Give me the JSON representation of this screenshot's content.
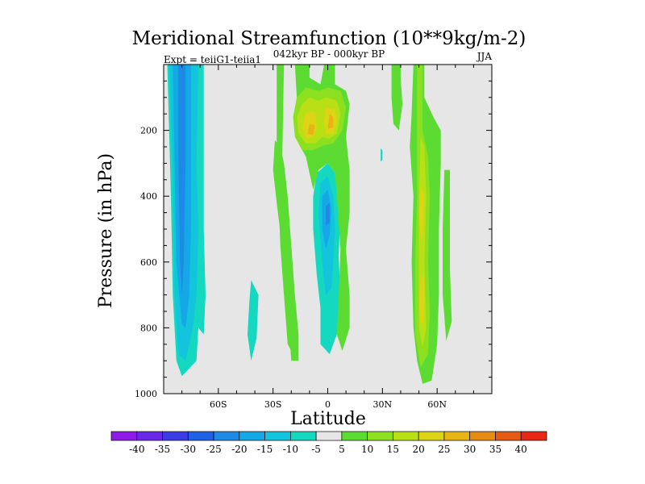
{
  "chart_data": {
    "type": "contour",
    "title": "Meridional Streamfunction (10**9kg/m-2)",
    "left_string": "Expt = teiiG1-teiia1",
    "center_string": "042kyr BP - 000kyr BP",
    "right_string": "JJA",
    "xlabel": "Latitude",
    "ylabel": "Pressure (in hPa)",
    "xlim": [
      -90,
      90
    ],
    "ylim": [
      1000,
      0
    ],
    "y_log": false,
    "x_ticks": [
      "60S",
      "30S",
      "0",
      "30N",
      "60N"
    ],
    "x_tick_values": [
      -60,
      -30,
      0,
      30,
      60
    ],
    "y_ticks": [
      "200",
      "400",
      "600",
      "800",
      "1000"
    ],
    "y_tick_values": [
      200,
      400,
      600,
      800,
      1000
    ],
    "background_color": "#e6e6e6",
    "colorbar": {
      "labels": [
        "-40",
        "-35",
        "-30",
        "-25",
        "-20",
        "-15",
        "-10",
        "-5",
        "5",
        "10",
        "15",
        "20",
        "25",
        "30",
        "35",
        "40"
      ],
      "colors": [
        "#8c1ce6",
        "#6a28e8",
        "#3c3ce6",
        "#2060e6",
        "#1e8ae6",
        "#14a8e6",
        "#12c4dc",
        "#14d8c0",
        "#e6e6e6",
        "#5cdc32",
        "#8ce020",
        "#b8e014",
        "#dcd414",
        "#e6b414",
        "#e68c14",
        "#e65a14",
        "#e62814"
      ]
    },
    "regions": [
      {
        "name": "-5",
        "level": -5,
        "points": [
          [
            -88,
            0
          ],
          [
            -68,
            0
          ],
          [
            -68,
            500
          ],
          [
            -67,
            700
          ],
          [
            -68,
            820
          ],
          [
            -71,
            800
          ],
          [
            -72,
            900
          ],
          [
            -80,
            947
          ],
          [
            -83,
            900
          ],
          [
            -85,
            700
          ],
          [
            -86,
            400
          ]
        ]
      },
      {
        "name": "-10",
        "level": -10,
        "points": [
          [
            -87,
            0
          ],
          [
            -71,
            0
          ],
          [
            -72,
            300
          ],
          [
            -71,
            500
          ],
          [
            -72,
            700
          ],
          [
            -74,
            800
          ],
          [
            -78,
            900
          ],
          [
            -82,
            880
          ],
          [
            -84,
            700
          ],
          [
            -85,
            300
          ]
        ]
      },
      {
        "name": "-15",
        "level": -15,
        "points": [
          [
            -85,
            0
          ],
          [
            -75,
            0
          ],
          [
            -75,
            300
          ],
          [
            -75,
            500
          ],
          [
            -76,
            700
          ],
          [
            -78,
            800
          ],
          [
            -80,
            790
          ],
          [
            -83,
            600
          ],
          [
            -84,
            300
          ]
        ]
      },
      {
        "name": "-20",
        "level": -20,
        "points": [
          [
            -82,
            0
          ],
          [
            -78,
            0
          ],
          [
            -78,
            300
          ],
          [
            -79,
            600
          ],
          [
            -80,
            700
          ],
          [
            -81,
            600
          ],
          [
            -82,
            300
          ]
        ]
      },
      {
        "name": "-5",
        "level": -5,
        "points": [
          [
            -42,
            655
          ],
          [
            -38,
            700
          ],
          [
            -39,
            830
          ],
          [
            -42,
            900
          ],
          [
            -44,
            820
          ],
          [
            -43,
            720
          ]
        ]
      },
      {
        "name": "-5",
        "level": -5,
        "points": [
          [
            -6,
            330
          ],
          [
            0,
            300
          ],
          [
            4,
            330
          ],
          [
            7,
            450
          ],
          [
            6,
            580
          ],
          [
            7,
            720
          ],
          [
            5,
            820
          ],
          [
            1,
            880
          ],
          [
            -4,
            850
          ],
          [
            -4,
            740
          ],
          [
            -6,
            640
          ],
          [
            -8,
            500
          ],
          [
            -8,
            400
          ]
        ]
      },
      {
        "name": "-10",
        "level": -10,
        "points": [
          [
            -4,
            360
          ],
          [
            0,
            340
          ],
          [
            3,
            400
          ],
          [
            4,
            500
          ],
          [
            3,
            600
          ],
          [
            2,
            680
          ],
          [
            -1,
            700
          ],
          [
            -3,
            600
          ],
          [
            -5,
            460
          ]
        ]
      },
      {
        "name": "-15",
        "level": -15,
        "points": [
          [
            -3,
            400
          ],
          [
            0,
            380
          ],
          [
            2,
            440
          ],
          [
            1,
            520
          ],
          [
            -1,
            560
          ],
          [
            -3,
            500
          ]
        ]
      },
      {
        "name": "-20",
        "level": -20,
        "points": [
          [
            -1,
            430
          ],
          [
            1,
            420
          ],
          [
            1,
            480
          ],
          [
            -1,
            490
          ]
        ]
      },
      {
        "name": "-5",
        "level": -5,
        "points": [
          [
            29,
            255
          ],
          [
            30,
            260
          ],
          [
            30,
            290
          ],
          [
            29,
            295
          ]
        ]
      },
      {
        "name": "5",
        "level": 5,
        "points": [
          [
            -28,
            0
          ],
          [
            -28,
            250
          ],
          [
            -26,
            550
          ],
          [
            -24,
            700
          ],
          [
            -22,
            850
          ],
          [
            -20,
            870
          ],
          [
            -21,
            700
          ],
          [
            -23,
            500
          ],
          [
            -25,
            300
          ],
          [
            -24,
            0
          ]
        ]
      },
      {
        "name": "5",
        "level": 5,
        "points": [
          [
            -29,
            230
          ],
          [
            -26,
            250
          ],
          [
            -24,
            300
          ],
          [
            -22,
            400
          ],
          [
            -20,
            550
          ],
          [
            -18,
            700
          ],
          [
            -16,
            820
          ],
          [
            -16,
            900
          ],
          [
            -20,
            900
          ],
          [
            -22,
            750
          ],
          [
            -24,
            600
          ],
          [
            -28,
            420
          ],
          [
            -30,
            320
          ]
        ]
      },
      {
        "name": "5",
        "level": 5,
        "points": [
          [
            -18,
            0
          ],
          [
            -10,
            0
          ],
          [
            -10,
            40
          ],
          [
            -4,
            60
          ],
          [
            -2,
            0
          ],
          [
            4,
            0
          ],
          [
            4,
            60
          ],
          [
            10,
            80
          ],
          [
            12,
            120
          ],
          [
            10,
            220
          ],
          [
            12,
            320
          ],
          [
            12,
            450
          ],
          [
            10,
            560
          ],
          [
            12,
            700
          ],
          [
            12,
            800
          ],
          [
            8,
            870
          ],
          [
            5,
            820
          ],
          [
            6,
            700
          ],
          [
            7,
            560
          ],
          [
            5,
            400
          ],
          [
            4,
            330
          ],
          [
            0,
            300
          ],
          [
            -5,
            320
          ],
          [
            -8,
            380
          ],
          [
            -10,
            330
          ],
          [
            -12,
            280
          ],
          [
            -16,
            240
          ],
          [
            -18,
            160
          ],
          [
            -17,
            100
          ]
        ]
      },
      {
        "name": "10",
        "level": 10,
        "points": [
          [
            -17,
            100
          ],
          [
            -12,
            70
          ],
          [
            -5,
            80
          ],
          [
            0,
            70
          ],
          [
            7,
            80
          ],
          [
            10,
            130
          ],
          [
            8,
            200
          ],
          [
            3,
            240
          ],
          [
            -2,
            245
          ],
          [
            -8,
            260
          ],
          [
            -14,
            260
          ],
          [
            -18,
            220
          ],
          [
            -19,
            160
          ]
        ]
      },
      {
        "name": "15",
        "level": 15,
        "points": [
          [
            -14,
            120
          ],
          [
            -10,
            100
          ],
          [
            -5,
            110
          ],
          [
            -1,
            100
          ],
          [
            5,
            110
          ],
          [
            7,
            150
          ],
          [
            5,
            210
          ],
          [
            1,
            225
          ],
          [
            -3,
            220
          ],
          [
            -7,
            240
          ],
          [
            -12,
            240
          ],
          [
            -16,
            210
          ],
          [
            -17,
            160
          ]
        ]
      },
      {
        "name": "20",
        "level": 20,
        "points": [
          [
            -12,
            145
          ],
          [
            -7,
            145
          ],
          [
            -6,
            190
          ],
          [
            -8,
            220
          ],
          [
            -12,
            225
          ],
          [
            -14,
            190
          ]
        ]
      },
      {
        "name": "20",
        "level": 20,
        "points": [
          [
            -1,
            130
          ],
          [
            4,
            135
          ],
          [
            5,
            175
          ],
          [
            3,
            210
          ],
          [
            -1,
            210
          ],
          [
            -2,
            170
          ]
        ]
      },
      {
        "name": "25",
        "level": 25,
        "points": [
          [
            -10,
            180
          ],
          [
            -7,
            185
          ],
          [
            -8,
            215
          ],
          [
            -11,
            210
          ]
        ]
      },
      {
        "name": "25",
        "level": 25,
        "points": [
          [
            1,
            150
          ],
          [
            3,
            160
          ],
          [
            3,
            190
          ],
          [
            0,
            195
          ]
        ]
      },
      {
        "name": "5",
        "level": 5,
        "points": [
          [
            35,
            0
          ],
          [
            40,
            0
          ],
          [
            40,
            40
          ],
          [
            41,
            120
          ],
          [
            39,
            200
          ],
          [
            36,
            180
          ],
          [
            35,
            100
          ]
        ]
      },
      {
        "name": "5",
        "level": 5,
        "points": [
          [
            47,
            0
          ],
          [
            53,
            0
          ],
          [
            53,
            100
          ],
          [
            58,
            160
          ],
          [
            62,
            200
          ],
          [
            62,
            300
          ],
          [
            61,
            500
          ],
          [
            61,
            700
          ],
          [
            60,
            850
          ],
          [
            57,
            960
          ],
          [
            52,
            970
          ],
          [
            49,
            900
          ],
          [
            47,
            800
          ],
          [
            46,
            600
          ],
          [
            47,
            400
          ],
          [
            45,
            250
          ],
          [
            46,
            150
          ]
        ]
      },
      {
        "name": "10",
        "level": 10,
        "points": [
          [
            49,
            0
          ],
          [
            52,
            0
          ],
          [
            52,
            100
          ],
          [
            52,
            200
          ],
          [
            55,
            280
          ],
          [
            56,
            400
          ],
          [
            55,
            600
          ],
          [
            56,
            750
          ],
          [
            55,
            880
          ],
          [
            51,
            920
          ],
          [
            48,
            820
          ],
          [
            48,
            600
          ],
          [
            49,
            400
          ],
          [
            49,
            200
          ]
        ]
      },
      {
        "name": "15",
        "level": 15,
        "points": [
          [
            51,
            220
          ],
          [
            53,
            250
          ],
          [
            54,
            400
          ],
          [
            53,
            600
          ],
          [
            54,
            800
          ],
          [
            52,
            860
          ],
          [
            50,
            800
          ],
          [
            50,
            600
          ],
          [
            50,
            400
          ]
        ]
      },
      {
        "name": "20",
        "level": 20,
        "points": [
          [
            51,
            370
          ],
          [
            53,
            400
          ],
          [
            52,
            540
          ],
          [
            51,
            520
          ],
          [
            50,
            450
          ]
        ]
      },
      {
        "name": "20",
        "level": 20,
        "points": [
          [
            51,
            640
          ],
          [
            53,
            650
          ],
          [
            53,
            780
          ],
          [
            51,
            790
          ],
          [
            50,
            720
          ]
        ]
      },
      {
        "name": "5",
        "level": 5,
        "points": [
          [
            64,
            320
          ],
          [
            67,
            320
          ],
          [
            67,
            620
          ],
          [
            68,
            780
          ],
          [
            65,
            840
          ],
          [
            63,
            700
          ],
          [
            63,
            500
          ]
        ]
      }
    ]
  }
}
